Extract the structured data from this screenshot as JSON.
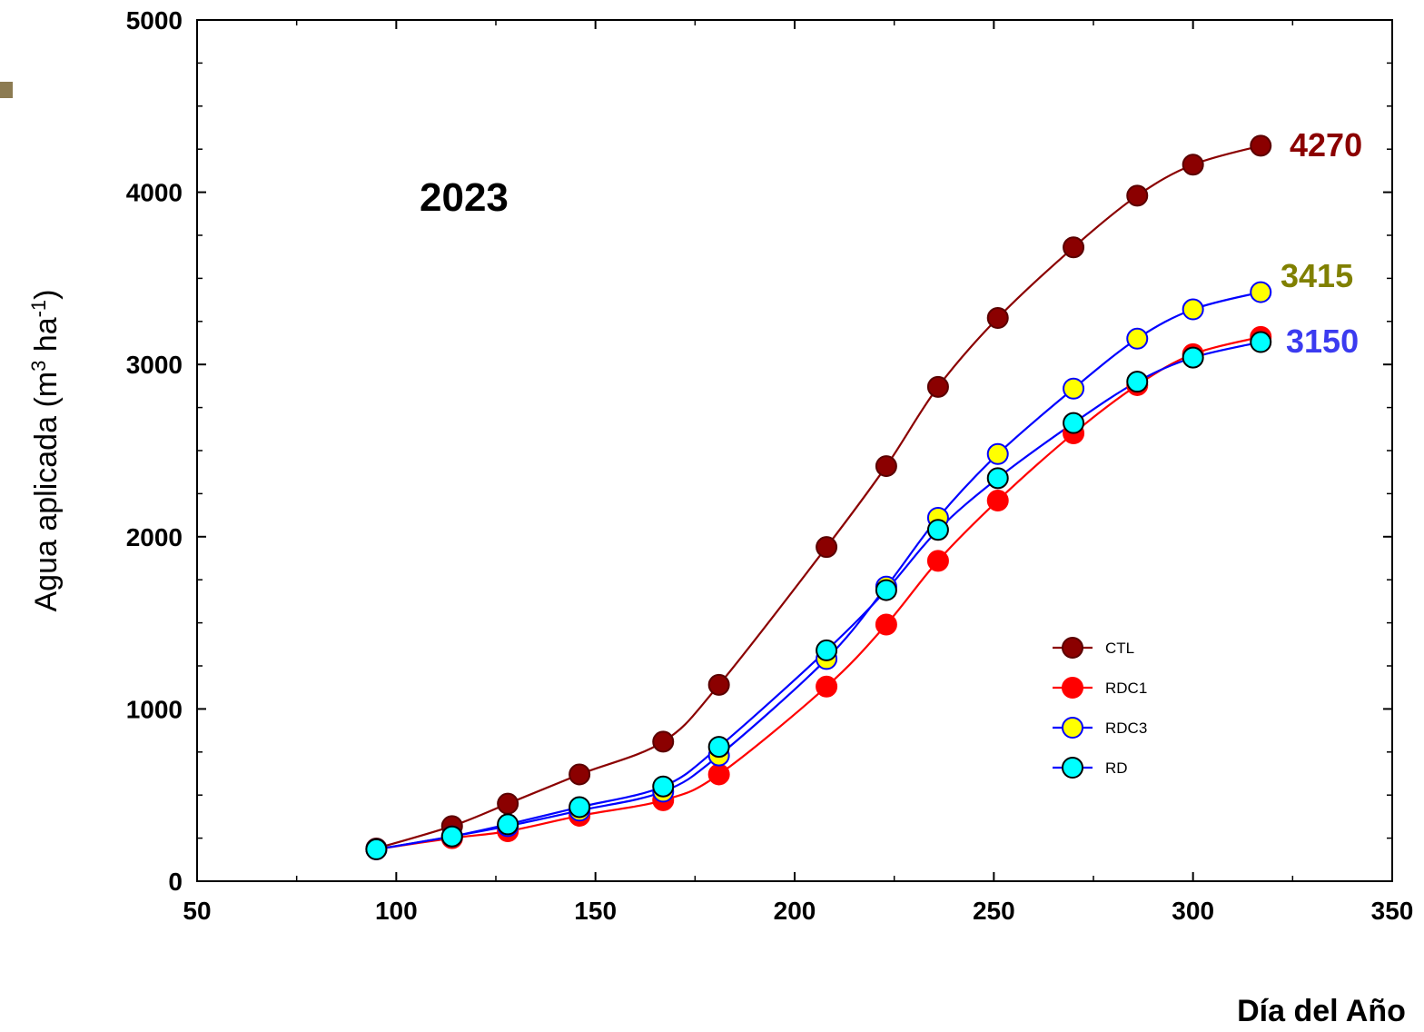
{
  "chart_data": {
    "type": "line",
    "title": "",
    "annotation": "2023",
    "xlabel": "Día del Año",
    "ylabel_prefix": "Agua aplicada (m",
    "ylabel_sup1": "3",
    "ylabel_mid": " ha",
    "ylabel_sup2": "-1",
    "ylabel_suffix": ")",
    "xlim": [
      50,
      350
    ],
    "ylim": [
      0,
      5000
    ],
    "x_ticks": [
      "50",
      "100",
      "150",
      "200",
      "250",
      "300",
      "350"
    ],
    "y_ticks": [
      "0",
      "1000",
      "2000",
      "3000",
      "4000",
      "5000"
    ],
    "grid": false,
    "legend_position": "center-right",
    "x": [
      95,
      114,
      128,
      146,
      167,
      181,
      208,
      223,
      236,
      251,
      270,
      286,
      300,
      317
    ],
    "series": [
      {
        "name": "CTL",
        "line_color": "#8b0000",
        "marker_fill": "#8b0000",
        "marker_edge": "#5a0000",
        "values": [
          190,
          320,
          450,
          620,
          810,
          1140,
          1940,
          2410,
          2870,
          3270,
          3680,
          3980,
          4160,
          4270
        ]
      },
      {
        "name": "RDC1",
        "line_color": "#ff0000",
        "marker_fill": "#ff0000",
        "marker_edge": "#ff0000",
        "values": [
          185,
          250,
          290,
          380,
          470,
          620,
          1130,
          1490,
          1860,
          2210,
          2600,
          2880,
          3060,
          3160
        ]
      },
      {
        "name": "RDC3",
        "line_color": "#0000ff",
        "marker_fill": "#ffff00",
        "marker_edge": "#0000ff",
        "values": [
          185,
          260,
          320,
          410,
          520,
          730,
          1290,
          1710,
          2110,
          2480,
          2860,
          3150,
          3320,
          3420
        ]
      },
      {
        "name": "RD",
        "line_color": "#0000ff",
        "marker_fill": "#00ffff",
        "marker_edge": "#000000",
        "values": [
          185,
          260,
          330,
          430,
          550,
          780,
          1340,
          1690,
          2040,
          2340,
          2660,
          2900,
          3040,
          3130
        ]
      }
    ],
    "end_labels": [
      {
        "text": "4270",
        "color": "#8b0000"
      },
      {
        "text": "3415",
        "color": "#808000"
      },
      {
        "text": "3150",
        "color": "#3b3bf0"
      }
    ]
  }
}
